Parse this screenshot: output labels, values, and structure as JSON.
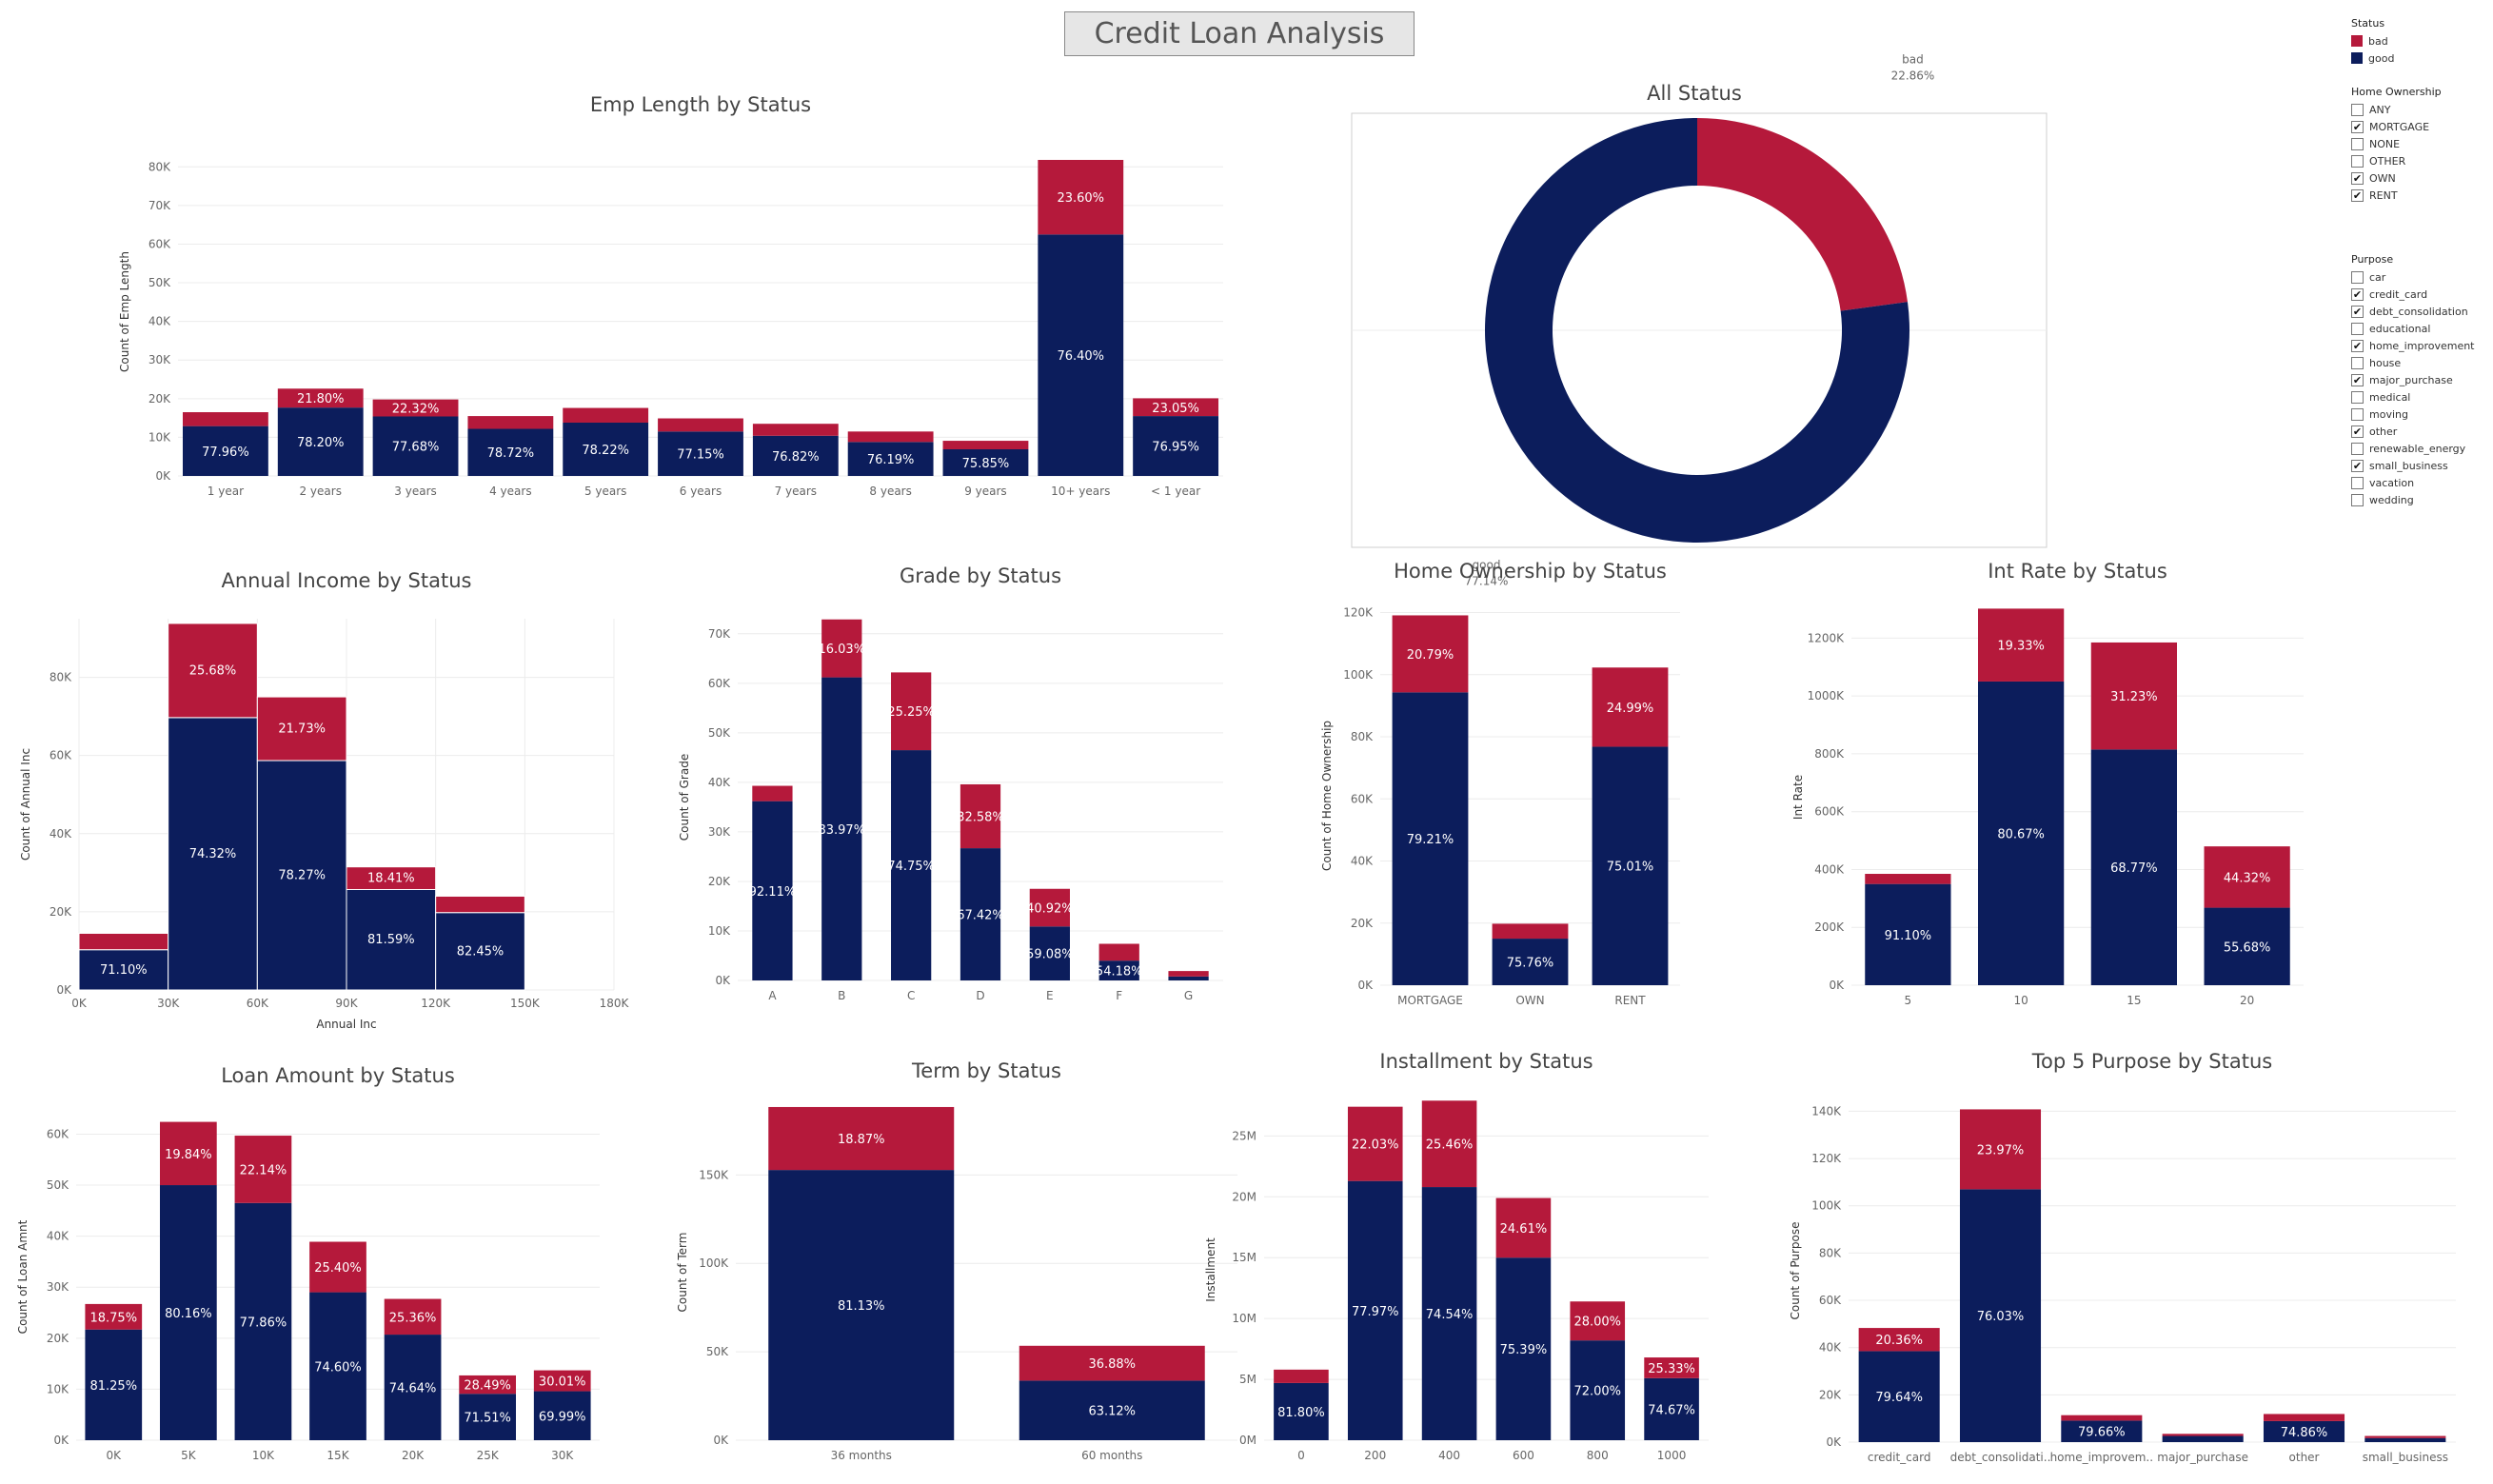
{
  "page": {
    "title": "Credit Loan Analysis"
  },
  "colors": {
    "bad": "#b5193b",
    "good": "#0c1d5c"
  },
  "legend": {
    "status_title": "Status",
    "status_items": [
      {
        "label": "bad",
        "color": "#b5193b"
      },
      {
        "label": "good",
        "color": "#0c1d5c"
      }
    ],
    "home_title": "Home Ownership",
    "home_items": [
      {
        "label": "ANY",
        "checked": false
      },
      {
        "label": "MORTGAGE",
        "checked": true
      },
      {
        "label": "NONE",
        "checked": false
      },
      {
        "label": "OTHER",
        "checked": false
      },
      {
        "label": "OWN",
        "checked": true
      },
      {
        "label": "RENT",
        "checked": true
      }
    ],
    "purpose_title": "Purpose",
    "purpose_items": [
      {
        "label": "car",
        "checked": false
      },
      {
        "label": "credit_card",
        "checked": true
      },
      {
        "label": "debt_consolidation",
        "checked": true
      },
      {
        "label": "educational",
        "checked": false
      },
      {
        "label": "home_improvement",
        "checked": true
      },
      {
        "label": "house",
        "checked": false
      },
      {
        "label": "major_purchase",
        "checked": true
      },
      {
        "label": "medical",
        "checked": false
      },
      {
        "label": "moving",
        "checked": false
      },
      {
        "label": "other",
        "checked": true
      },
      {
        "label": "renewable_energy",
        "checked": false
      },
      {
        "label": "small_business",
        "checked": true
      },
      {
        "label": "vacation",
        "checked": false
      },
      {
        "label": "wedding",
        "checked": false
      }
    ]
  },
  "chart_data": [
    {
      "id": "emp",
      "type": "bar",
      "stacked": true,
      "title": "Emp Length by Status",
      "xlabel": "",
      "ylabel": "Count of Emp Length",
      "ylim": [
        0,
        85000
      ],
      "yticks": [
        0,
        10000,
        20000,
        30000,
        40000,
        50000,
        60000,
        70000,
        80000
      ],
      "ytick_labels": [
        "0K",
        "10K",
        "20K",
        "30K",
        "40K",
        "50K",
        "60K",
        "70K",
        "80K"
      ],
      "categories": [
        "1 year",
        "2 years",
        "3 years",
        "4 years",
        "5 years",
        "6 years",
        "7 years",
        "8 years",
        "9 years",
        "10+ years",
        "< 1 year"
      ],
      "series": [
        {
          "name": "good",
          "values": [
            12900,
            17700,
            15400,
            12200,
            13800,
            11500,
            10400,
            8800,
            6900,
            62500,
            15500
          ],
          "labels": [
            "77.96%",
            "78.20%",
            "77.68%",
            "78.72%",
            "78.22%",
            "77.15%",
            "76.82%",
            "76.19%",
            "75.85%",
            "76.40%",
            "76.95%"
          ]
        },
        {
          "name": "bad",
          "values": [
            3600,
            4900,
            4400,
            3300,
            3800,
            3400,
            3100,
            2700,
            2200,
            19300,
            4600
          ],
          "labels": [
            "",
            "21.80%",
            "22.32%",
            "",
            "",
            "",
            "",
            "",
            "",
            "23.60%",
            "23.05%"
          ]
        }
      ]
    },
    {
      "id": "status",
      "type": "pie",
      "donut": true,
      "title": "All Status",
      "slices": [
        {
          "name": "bad",
          "value": 22.86,
          "label": "22.86%"
        },
        {
          "name": "good",
          "value": 77.14,
          "label": "77.14%"
        }
      ]
    },
    {
      "id": "income",
      "type": "bar",
      "stacked": true,
      "histogram": true,
      "title": "Annual Income by Status",
      "xlabel": "Annual Inc",
      "ylabel": "Count of Annual Inc",
      "xlim": [
        0,
        180000
      ],
      "xticks": [
        0,
        30000,
        60000,
        90000,
        120000,
        150000,
        180000
      ],
      "xtick_labels": [
        "0K",
        "30K",
        "60K",
        "90K",
        "120K",
        "150K",
        "180K"
      ],
      "ylim": [
        0,
        95000
      ],
      "yticks": [
        0,
        20000,
        40000,
        60000,
        80000
      ],
      "ytick_labels": [
        "0K",
        "20K",
        "40K",
        "60K",
        "80K"
      ],
      "bins": [
        [
          0,
          30000
        ],
        [
          30000,
          60000
        ],
        [
          60000,
          90000
        ],
        [
          90000,
          120000
        ],
        [
          120000,
          150000
        ]
      ],
      "series": [
        {
          "name": "good",
          "values": [
            10300,
            69700,
            58700,
            25700,
            19800
          ],
          "labels": [
            "71.10%",
            "74.32%",
            "78.27%",
            "81.59%",
            "82.45%"
          ]
        },
        {
          "name": "bad",
          "values": [
            4200,
            24100,
            16300,
            5800,
            4200
          ],
          "labels": [
            "",
            "25.68%",
            "21.73%",
            "18.41%",
            ""
          ]
        }
      ]
    },
    {
      "id": "grade",
      "type": "bar",
      "stacked": true,
      "title": "Grade by Status",
      "xlabel": "",
      "ylabel": "Count of Grade",
      "ylim": [
        0,
        74000
      ],
      "yticks": [
        0,
        10000,
        20000,
        30000,
        40000,
        50000,
        60000,
        70000
      ],
      "ytick_labels": [
        "0K",
        "10K",
        "20K",
        "30K",
        "40K",
        "50K",
        "60K",
        "70K"
      ],
      "categories": [
        "A",
        "B",
        "C",
        "D",
        "E",
        "F",
        "G"
      ],
      "series": [
        {
          "name": "good",
          "values": [
            36200,
            61200,
            46500,
            26700,
            10900,
            4000,
            800
          ],
          "labels": [
            "92.11%",
            "83.97%",
            "74.75%",
            "67.42%",
            "59.08%",
            "54.18%",
            ""
          ]
        },
        {
          "name": "bad",
          "values": [
            3100,
            11700,
            15700,
            12900,
            7600,
            3400,
            1100
          ],
          "labels": [
            "",
            "16.03%",
            "25.25%",
            "32.58%",
            "40.92%",
            "",
            ""
          ]
        }
      ]
    },
    {
      "id": "home",
      "type": "bar",
      "stacked": true,
      "title": "Home Ownership by Status",
      "xlabel": "",
      "ylabel": "Count of Home Ownership",
      "ylim": [
        0,
        122000
      ],
      "yticks": [
        0,
        20000,
        40000,
        60000,
        80000,
        100000,
        120000
      ],
      "ytick_labels": [
        "0K",
        "20K",
        "40K",
        "60K",
        "80K",
        "100K",
        "120K"
      ],
      "categories": [
        "MORTGAGE",
        "OWN",
        "RENT"
      ],
      "series": [
        {
          "name": "good",
          "values": [
            94300,
            15000,
            76800
          ],
          "labels": [
            "79.21%",
            "75.76%",
            "75.01%"
          ]
        },
        {
          "name": "bad",
          "values": [
            24800,
            4800,
            25500
          ],
          "labels": [
            "20.79%",
            "",
            "24.99%"
          ]
        }
      ]
    },
    {
      "id": "intrate",
      "type": "bar",
      "stacked": true,
      "title": "Int Rate by Status",
      "xlabel": "",
      "ylabel": "Int Rate",
      "ylim": [
        0,
        1300000
      ],
      "yticks": [
        0,
        200000,
        400000,
        600000,
        800000,
        1000000,
        1200000
      ],
      "ytick_labels": [
        "0K",
        "200K",
        "400K",
        "600K",
        "800K",
        "1000K",
        "1200K"
      ],
      "categories": [
        "5",
        "10",
        "15",
        "20"
      ],
      "series": [
        {
          "name": "good",
          "values": [
            350000,
            1050000,
            815000,
            268000
          ],
          "labels": [
            "91.10%",
            "80.67%",
            "68.77%",
            "55.68%"
          ]
        },
        {
          "name": "bad",
          "values": [
            35000,
            252000,
            370000,
            212000
          ],
          "labels": [
            "",
            "19.33%",
            "31.23%",
            "44.32%"
          ]
        }
      ]
    },
    {
      "id": "loan",
      "type": "bar",
      "stacked": true,
      "title": "Loan Amount by Status",
      "xlabel": "",
      "ylabel": "Count of Loan Amnt",
      "ylim": [
        0,
        64000
      ],
      "yticks": [
        0,
        10000,
        20000,
        30000,
        40000,
        50000,
        60000
      ],
      "ytick_labels": [
        "0K",
        "10K",
        "20K",
        "30K",
        "40K",
        "50K",
        "60K"
      ],
      "categories": [
        "0K",
        "5K",
        "10K",
        "15K",
        "20K",
        "25K",
        "30K"
      ],
      "series": [
        {
          "name": "good",
          "values": [
            21700,
            50000,
            46500,
            29000,
            20700,
            9100,
            9600
          ],
          "labels": [
            "81.25%",
            "80.16%",
            "77.86%",
            "74.60%",
            "74.64%",
            "71.51%",
            "69.99%"
          ]
        },
        {
          "name": "bad",
          "values": [
            5000,
            12400,
            13200,
            9900,
            7000,
            3600,
            4100
          ],
          "labels": [
            "18.75%",
            "19.84%",
            "22.14%",
            "25.40%",
            "25.36%",
            "28.49%",
            "30.01%"
          ]
        }
      ]
    },
    {
      "id": "term",
      "type": "bar",
      "stacked": true,
      "title": "Term by Status",
      "xlabel": "",
      "ylabel": "Count of Term",
      "ylim": [
        0,
        190000
      ],
      "yticks": [
        0,
        50000,
        100000,
        150000
      ],
      "ytick_labels": [
        "0K",
        "50K",
        "100K",
        "150K"
      ],
      "categories": [
        "36 months",
        "60 months"
      ],
      "series": [
        {
          "name": "good",
          "values": [
            152800,
            33700
          ],
          "labels": [
            "81.13%",
            "63.12%"
          ]
        },
        {
          "name": "bad",
          "values": [
            35600,
            19700
          ],
          "labels": [
            "18.87%",
            "36.88%"
          ]
        }
      ]
    },
    {
      "id": "install",
      "type": "bar",
      "stacked": true,
      "title": "Installment by Status",
      "xlabel": "",
      "ylabel": "Installment",
      "ylim": [
        0,
        28000000
      ],
      "yticks": [
        0,
        5000000,
        10000000,
        15000000,
        20000000,
        25000000
      ],
      "ytick_labels": [
        "0M",
        "5M",
        "10M",
        "15M",
        "20M",
        "25M"
      ],
      "categories": [
        "0",
        "200",
        "400",
        "600",
        "800",
        "1000"
      ],
      "series": [
        {
          "name": "good",
          "values": [
            4700000,
            21300000,
            20800000,
            15000000,
            8200000,
            5100000
          ],
          "labels": [
            "81.80%",
            "77.97%",
            "74.54%",
            "75.39%",
            "72.00%",
            "74.67%"
          ]
        },
        {
          "name": "bad",
          "values": [
            1100000,
            6100000,
            7100000,
            4900000,
            3200000,
            1700000
          ],
          "labels": [
            "",
            "22.03%",
            "25.46%",
            "24.61%",
            "28.00%",
            "25.33%"
          ]
        }
      ]
    },
    {
      "id": "purpose",
      "type": "bar",
      "stacked": true,
      "title": "Top 5 Purpose by Status",
      "xlabel": "",
      "ylabel": "Count of Purpose",
      "ylim": [
        0,
        145000
      ],
      "yticks": [
        0,
        20000,
        40000,
        60000,
        80000,
        100000,
        120000,
        140000
      ],
      "ytick_labels": [
        "0K",
        "20K",
        "40K",
        "60K",
        "80K",
        "100K",
        "120K",
        "140K"
      ],
      "categories": [
        "credit_card",
        "debt_consolidati..",
        "home_improvem..",
        "major_purchase",
        "other",
        "small_business"
      ],
      "series": [
        {
          "name": "good",
          "values": [
            38500,
            107000,
            9100,
            2600,
            8900,
            1700
          ],
          "labels": [
            "79.64%",
            "76.03%",
            "79.66%",
            "",
            "74.86%",
            ""
          ]
        },
        {
          "name": "bad",
          "values": [
            9800,
            33800,
            2300,
            900,
            3000,
            900
          ],
          "labels": [
            "20.36%",
            "23.97%",
            "",
            "",
            "",
            ""
          ]
        }
      ]
    }
  ]
}
